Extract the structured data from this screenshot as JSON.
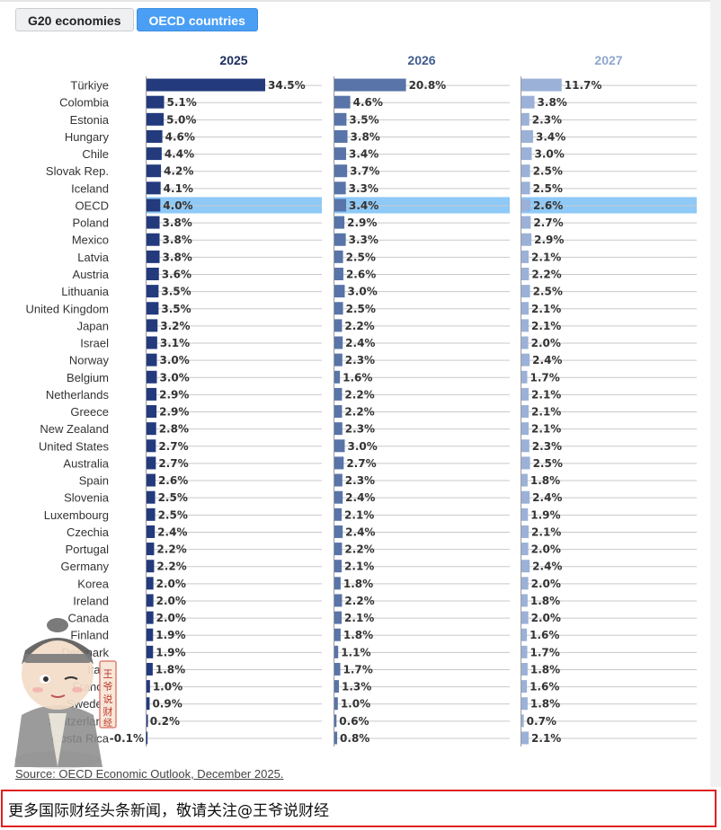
{
  "tabs": [
    {
      "label": "G20 economies",
      "active": false
    },
    {
      "label": "OECD countries",
      "active": true
    }
  ],
  "source_text": "Source: OECD Economic Outlook, December 2025.",
  "banner_text": "更多国际财经头条新闻，敬请关注@王爷说财经",
  "watermark_text": "王爷说财经",
  "colors": {
    "s2025": "#233a7d",
    "s2026": "#5874a8",
    "s2027": "#9bb1d7",
    "highlight": "#8ec9f7",
    "active_tab": "#4a9ff5",
    "banner_border": "#e02020"
  },
  "chart_data": {
    "type": "bar",
    "orientation": "horizontal",
    "highlight_category": "OECD",
    "categories": [
      "Türkiye",
      "Colombia",
      "Estonia",
      "Hungary",
      "Chile",
      "Slovak Rep.",
      "Iceland",
      "OECD",
      "Poland",
      "Mexico",
      "Latvia",
      "Austria",
      "Lithuania",
      "United Kingdom",
      "Japan",
      "Israel",
      "Norway",
      "Belgium",
      "Netherlands",
      "Greece",
      "New Zealand",
      "United States",
      "Australia",
      "Spain",
      "Slovenia",
      "Luxembourg",
      "Czechia",
      "Portugal",
      "Germany",
      "Korea",
      "Ireland",
      "Canada",
      "Finland",
      "Denmark",
      "Italy",
      "France",
      "Sweden",
      "Switzerland",
      "Costa Rica"
    ],
    "series": [
      {
        "name": "2025",
        "values": [
          34.5,
          5.1,
          5.0,
          4.6,
          4.4,
          4.2,
          4.1,
          4.0,
          3.8,
          3.8,
          3.8,
          3.6,
          3.5,
          3.5,
          3.2,
          3.1,
          3.0,
          3.0,
          2.9,
          2.9,
          2.8,
          2.7,
          2.7,
          2.6,
          2.5,
          2.5,
          2.4,
          2.2,
          2.2,
          2.0,
          2.0,
          2.0,
          1.9,
          1.9,
          1.8,
          1.0,
          0.9,
          0.2,
          -0.1
        ]
      },
      {
        "name": "2026",
        "values": [
          20.8,
          4.6,
          3.5,
          3.8,
          3.4,
          3.7,
          3.3,
          3.4,
          2.9,
          3.3,
          2.5,
          2.6,
          3.0,
          2.5,
          2.2,
          2.4,
          2.3,
          1.6,
          2.2,
          2.2,
          2.3,
          3.0,
          2.7,
          2.3,
          2.4,
          2.1,
          2.4,
          2.2,
          2.1,
          1.8,
          2.2,
          2.1,
          1.8,
          1.1,
          1.7,
          1.3,
          1.0,
          0.6,
          0.8
        ]
      },
      {
        "name": "2027",
        "values": [
          11.7,
          3.8,
          2.3,
          3.4,
          3.0,
          2.5,
          2.5,
          2.6,
          2.7,
          2.9,
          2.1,
          2.2,
          2.5,
          2.1,
          2.1,
          2.0,
          2.4,
          1.7,
          2.1,
          2.1,
          2.1,
          2.3,
          2.5,
          1.8,
          2.4,
          1.9,
          2.1,
          2.0,
          2.4,
          2.0,
          1.8,
          2.0,
          1.6,
          1.7,
          1.8,
          1.6,
          1.8,
          0.7,
          2.1
        ]
      }
    ]
  }
}
